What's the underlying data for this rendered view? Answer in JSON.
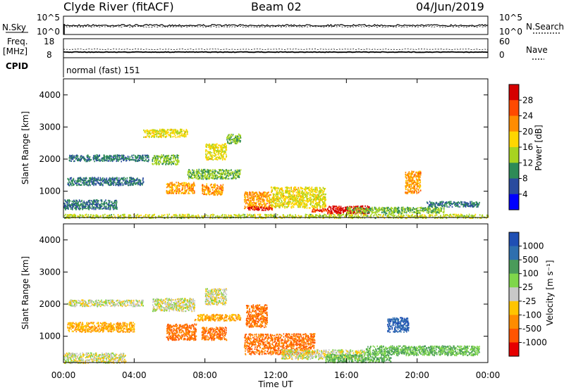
{
  "header": {
    "station": "Clyde River (fitACF)",
    "beam": "Beam 02",
    "date": "04/Jun/2019"
  },
  "noise_panel": {
    "left_label": "N.Sky",
    "right_label": "N.Search",
    "ticks_left": [
      "10^5",
      "10^0"
    ],
    "ticks_right": [
      "10^5",
      "10^0"
    ]
  },
  "freq_panel": {
    "left_label_line1": "Freq.",
    "left_label_line2": "[MHz]",
    "right_label": "Nave",
    "ticks_left": [
      "18",
      "8"
    ],
    "ticks_right": [
      "60",
      "0"
    ]
  },
  "cpid": {
    "label": "CPID",
    "text": "normal (fast) 151"
  },
  "power_panel": {
    "ylabel": "Slant Range [km]",
    "yticks": [
      "4000",
      "3000",
      "2000",
      "1000"
    ],
    "colorbar_label": "Power [dB]",
    "colorbar_ticks": [
      "28",
      "24",
      "20",
      "16",
      "12",
      "8",
      "4"
    ],
    "colorbar_colors": [
      "#d50000",
      "#ff4a00",
      "#ff8c00",
      "#ffd600",
      "#a7d420",
      "#2e8b57",
      "#2a4b9e",
      "#0000ff"
    ]
  },
  "velocity_panel": {
    "ylabel": "Slant Range [km]",
    "yticks": [
      "4000",
      "3000",
      "2000",
      "1000"
    ],
    "colorbar_label": "Velocity [m s⁻¹]",
    "colorbar_ticks": [
      "1000",
      "500",
      "100",
      "25",
      "-25",
      "-100",
      "-500",
      "-1000"
    ],
    "colorbar_colors": [
      "#1f4fb4",
      "#2e6fae",
      "#4a9b5a",
      "#7fd64b",
      "#c8c8c8",
      "#ffc400",
      "#ff8c00",
      "#ff5500",
      "#e60000"
    ]
  },
  "xaxis": {
    "label": "Time UT",
    "ticks": [
      "00:00",
      "04:00",
      "08:00",
      "12:00",
      "16:00",
      "20:00",
      "00:00"
    ]
  },
  "chart_data": {
    "type": "heatmap",
    "title": "Clyde River (fitACF)",
    "subtitle": "Beam 02",
    "date": "04/Jun/2019",
    "xlabel": "Time UT",
    "x_range_hours": [
      0,
      24
    ],
    "y_range_km": [
      180,
      4500
    ],
    "panels": [
      {
        "name": "Power",
        "ylabel": "Slant Range [km]",
        "colorbar_label": "Power [dB]",
        "colorbar_range": [
          0,
          30
        ],
        "scatter_regions": [
          {
            "t_start": 0.0,
            "t_end": 24.0,
            "r_start": 180,
            "r_end": 300,
            "value": 14
          },
          {
            "t_start": 0.0,
            "t_end": 3.0,
            "r_start": 450,
            "r_end": 750,
            "value": 8
          },
          {
            "t_start": 0.2,
            "t_end": 4.5,
            "r_start": 1200,
            "r_end": 1450,
            "value": 8
          },
          {
            "t_start": 0.3,
            "t_end": 4.8,
            "r_start": 1950,
            "r_end": 2150,
            "value": 8
          },
          {
            "t_start": 5.0,
            "t_end": 6.5,
            "r_start": 1850,
            "r_end": 2150,
            "value": 12
          },
          {
            "t_start": 4.5,
            "t_end": 7.0,
            "r_start": 2700,
            "r_end": 2950,
            "value": 16
          },
          {
            "t_start": 5.8,
            "t_end": 7.4,
            "r_start": 950,
            "r_end": 1300,
            "value": 20
          },
          {
            "t_start": 7.8,
            "t_end": 9.0,
            "r_start": 900,
            "r_end": 1250,
            "value": 20
          },
          {
            "t_start": 7.0,
            "t_end": 10.0,
            "r_start": 1400,
            "r_end": 1700,
            "value": 12
          },
          {
            "t_start": 8.0,
            "t_end": 9.2,
            "r_start": 2000,
            "r_end": 2500,
            "value": 16
          },
          {
            "t_start": 9.2,
            "t_end": 10.0,
            "r_start": 2500,
            "r_end": 2800,
            "value": 12
          },
          {
            "t_start": 10.2,
            "t_end": 11.7,
            "r_start": 480,
            "r_end": 1000,
            "value": 20
          },
          {
            "t_start": 10.4,
            "t_end": 11.8,
            "r_start": 430,
            "r_end": 540,
            "value": 28
          },
          {
            "t_start": 11.7,
            "t_end": 14.8,
            "r_start": 500,
            "r_end": 1150,
            "value": 16
          },
          {
            "t_start": 14.0,
            "t_end": 14.9,
            "r_start": 380,
            "r_end": 480,
            "value": 24
          },
          {
            "t_start": 14.9,
            "t_end": 17.3,
            "r_start": 320,
            "r_end": 560,
            "value": 28
          },
          {
            "t_start": 16.0,
            "t_end": 21.5,
            "r_start": 330,
            "r_end": 520,
            "value": 12
          },
          {
            "t_start": 19.3,
            "t_end": 20.2,
            "r_start": 950,
            "r_end": 1650,
            "value": 20
          },
          {
            "t_start": 20.5,
            "t_end": 23.5,
            "r_start": 530,
            "r_end": 700,
            "value": 8
          }
        ]
      },
      {
        "name": "Velocity",
        "ylabel": "Slant Range [km]",
        "colorbar_label": "Velocity [m s⁻¹]",
        "colorbar_range": [
          -1000,
          1000
        ],
        "scatter_regions": [
          {
            "t_start": 0.0,
            "t_end": 3.5,
            "r_start": 180,
            "r_end": 500,
            "value": 0
          },
          {
            "t_start": 0.2,
            "t_end": 4.5,
            "r_start": 1950,
            "r_end": 2150,
            "value": 0
          },
          {
            "t_start": 0.2,
            "t_end": 4.0,
            "r_start": 1150,
            "r_end": 1450,
            "value": -100
          },
          {
            "t_start": 5.0,
            "t_end": 7.4,
            "r_start": 1800,
            "r_end": 2200,
            "value": 0
          },
          {
            "t_start": 5.8,
            "t_end": 7.5,
            "r_start": 900,
            "r_end": 1400,
            "value": -500
          },
          {
            "t_start": 7.8,
            "t_end": 9.2,
            "r_start": 900,
            "r_end": 1300,
            "value": -500
          },
          {
            "t_start": 7.4,
            "t_end": 10.0,
            "r_start": 1500,
            "r_end": 1700,
            "value": -100
          },
          {
            "t_start": 8.0,
            "t_end": 9.2,
            "r_start": 2000,
            "r_end": 2500,
            "value": 0
          },
          {
            "t_start": 10.2,
            "t_end": 14.2,
            "r_start": 450,
            "r_end": 1100,
            "value": -500
          },
          {
            "t_start": 10.3,
            "t_end": 11.5,
            "r_start": 1300,
            "r_end": 2000,
            "value": -500
          },
          {
            "t_start": 12.3,
            "t_end": 17.0,
            "r_start": 300,
            "r_end": 600,
            "value": 0
          },
          {
            "t_start": 14.8,
            "t_end": 18.5,
            "r_start": 200,
            "r_end": 450,
            "value": 100
          },
          {
            "t_start": 17.0,
            "t_end": 23.5,
            "r_start": 420,
            "r_end": 720,
            "value": 100
          },
          {
            "t_start": 18.3,
            "t_end": 19.5,
            "r_start": 1150,
            "r_end": 1600,
            "value": 1000
          }
        ]
      }
    ]
  }
}
